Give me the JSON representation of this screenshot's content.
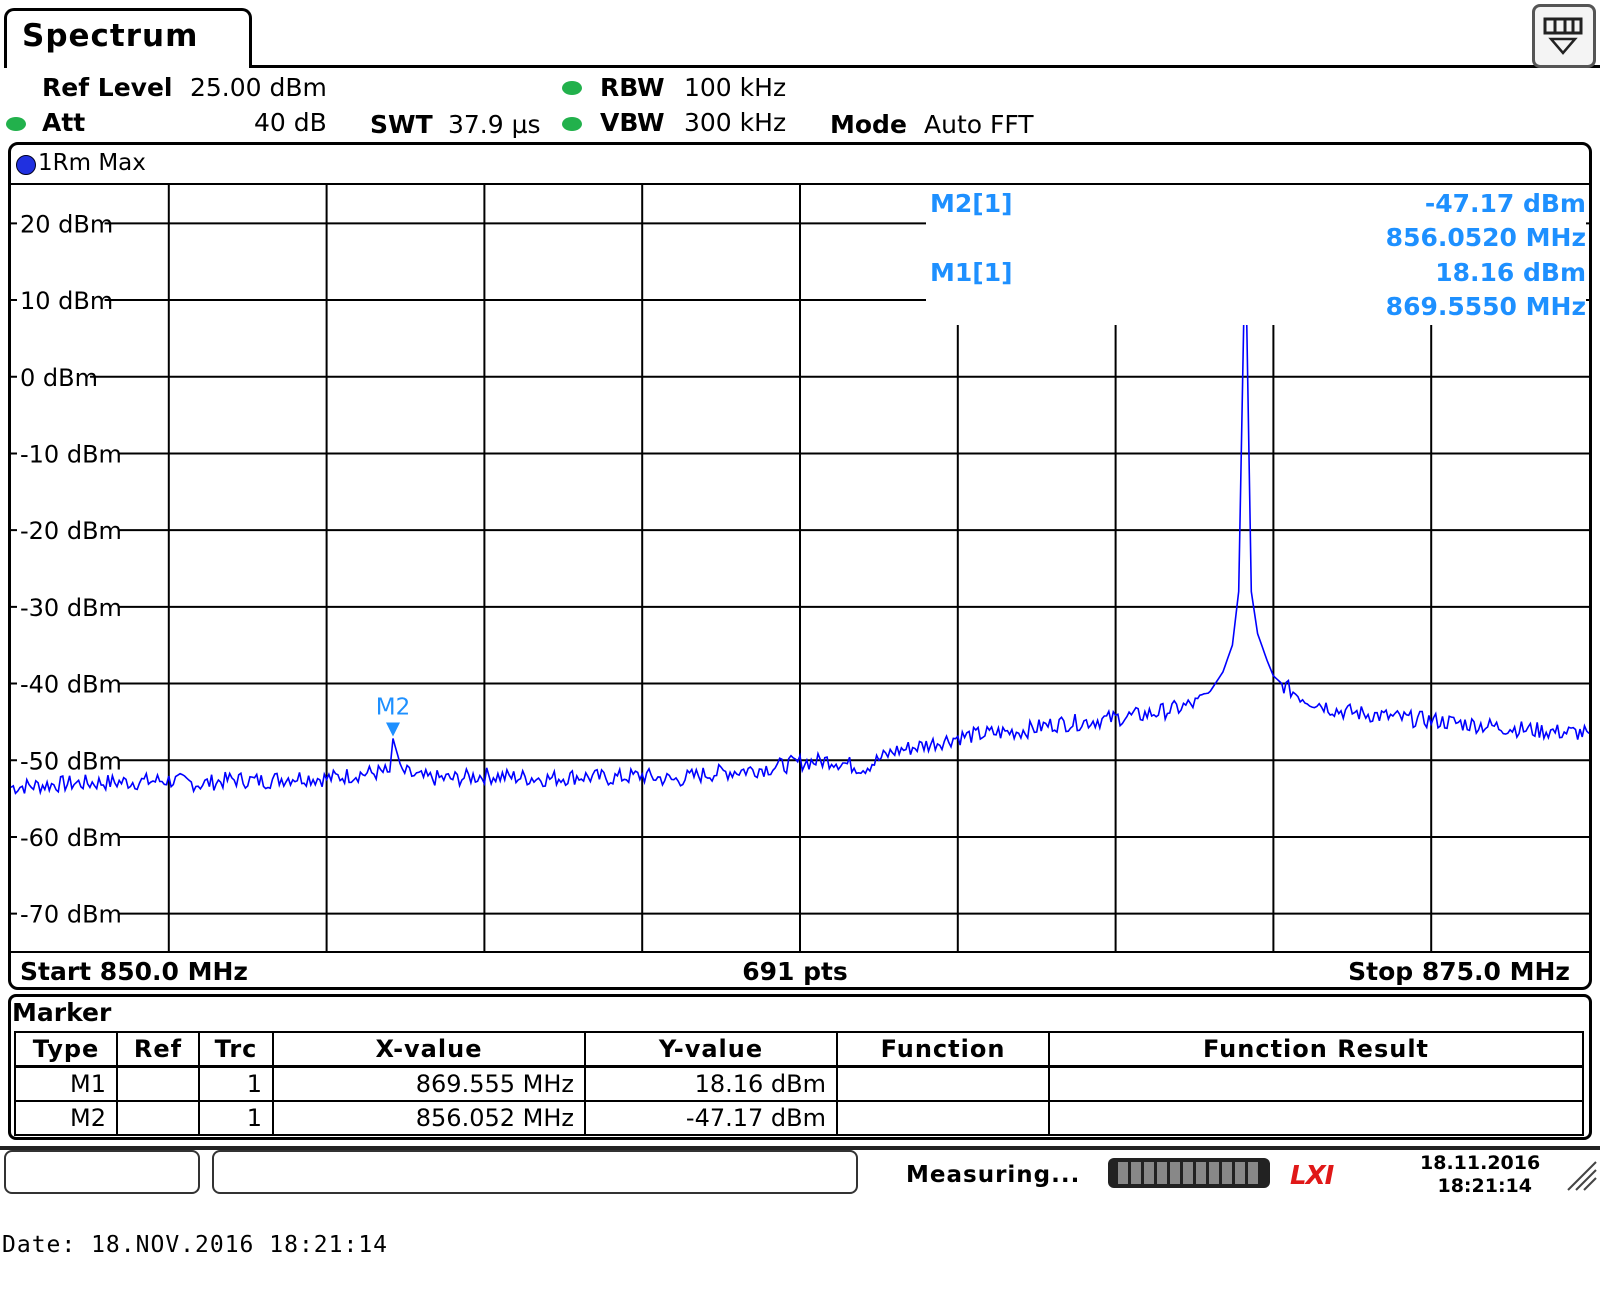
{
  "window": {
    "tab_title": "Spectrum",
    "corner_button_icon": "display-toggle-icon"
  },
  "params": {
    "ref_level_label": "Ref Level",
    "ref_level_value": "25.00 dBm",
    "att_label": "Att",
    "att_value": "40 dB",
    "swt_label": "SWT",
    "swt_value": "37.9 µs",
    "rbw_label": "RBW",
    "rbw_value": "100 kHz",
    "vbw_label": "VBW",
    "vbw_value": "300 kHz",
    "mode_label": "Mode",
    "mode_value": "Auto FFT"
  },
  "trace": {
    "label": "1Rm Max",
    "color": "#0000ff"
  },
  "marker_color": "#1e90ff",
  "marker_readouts": {
    "m2_label": "M2[1]",
    "m2_level": "-47.17 dBm",
    "m2_freq": "856.0520 MHz",
    "m1_label": "M1[1]",
    "m1_level": "18.16 dBm",
    "m1_freq": "869.5550 MHz"
  },
  "chart_data": {
    "type": "line",
    "xlim": [
      850.0,
      875.0
    ],
    "ylim": [
      -75,
      25
    ],
    "ytick_labels": [
      "20 dBm",
      "10 dBm",
      "0 dBm",
      "-10 dBm",
      "-20 dBm",
      "-30 dBm",
      "-40 dBm",
      "-50 dBm",
      "-60 dBm",
      "-70 dBm"
    ],
    "yticks": [
      20,
      10,
      0,
      -10,
      -20,
      -30,
      -40,
      -50,
      -60,
      -70
    ],
    "x_divisions": 10,
    "grid": true,
    "series": [
      {
        "x": [
          850.0,
          851.0,
          852.0,
          852.5,
          853.0,
          853.5,
          854.0,
          854.5,
          855.0,
          855.5,
          856.0,
          856.052,
          856.2,
          856.5,
          857.0,
          857.5,
          858.0,
          858.5,
          859.0,
          859.5,
          860.0,
          860.5,
          861.0,
          861.5,
          862.0,
          862.5,
          863.0,
          863.5,
          864.0,
          864.5,
          865.0,
          865.5,
          866.0,
          866.5,
          867.0,
          867.5,
          868.0,
          868.5,
          868.8,
          869.0,
          869.2,
          869.35,
          869.45,
          869.555,
          869.65,
          869.75,
          869.9,
          870.0,
          870.2,
          870.5,
          870.8,
          871.0,
          871.5,
          872.0,
          872.5,
          873.0,
          873.5,
          874.0,
          874.5,
          875.0
        ],
        "y": [
          -53.5,
          -53.0,
          -52.8,
          -52.6,
          -53.1,
          -52.5,
          -52.7,
          -52.2,
          -52.4,
          -51.8,
          -51.5,
          -47.17,
          -51.5,
          -52.3,
          -52.4,
          -52.0,
          -52.2,
          -52.4,
          -52.1,
          -52.3,
          -52.0,
          -52.6,
          -51.8,
          -51.4,
          -51.0,
          -50.3,
          -50.0,
          -51.0,
          -48.8,
          -48.0,
          -47.0,
          -46.5,
          -46.2,
          -45.3,
          -45.0,
          -44.5,
          -44.0,
          -43.2,
          -42.5,
          -41.0,
          -38.5,
          -35.0,
          -28.0,
          18.16,
          -28.0,
          -33.5,
          -37.0,
          -39.0,
          -40.5,
          -42.0,
          -42.8,
          -43.5,
          -44.0,
          -44.5,
          -44.8,
          -45.2,
          -45.6,
          -46.0,
          -46.3,
          -46.5
        ]
      }
    ],
    "markers": [
      {
        "name": "M1",
        "x": 869.555,
        "y": 18.16
      },
      {
        "name": "M2",
        "x": 856.052,
        "y": -47.17
      }
    ]
  },
  "axis_bottom": {
    "start": "Start 850.0 MHz",
    "points": "691 pts",
    "stop": "Stop 875.0 MHz"
  },
  "marker_table": {
    "title": "Marker",
    "headers": [
      "Type",
      "Ref",
      "Trc",
      "X-value",
      "Y-value",
      "Function",
      "Function Result"
    ],
    "rows": [
      [
        "M1",
        "",
        "1",
        "869.555 MHz",
        "18.16 dBm",
        "",
        ""
      ],
      [
        "M2",
        "",
        "1",
        "856.052 MHz",
        "-47.17 dBm",
        "",
        ""
      ]
    ]
  },
  "status_bar": {
    "measuring": "Measuring...",
    "date": "18.11.2016",
    "time": "18:21:14",
    "logo": "LXI"
  },
  "footer": {
    "date_line": "Date: 18.NOV.2016   18:21:14"
  }
}
